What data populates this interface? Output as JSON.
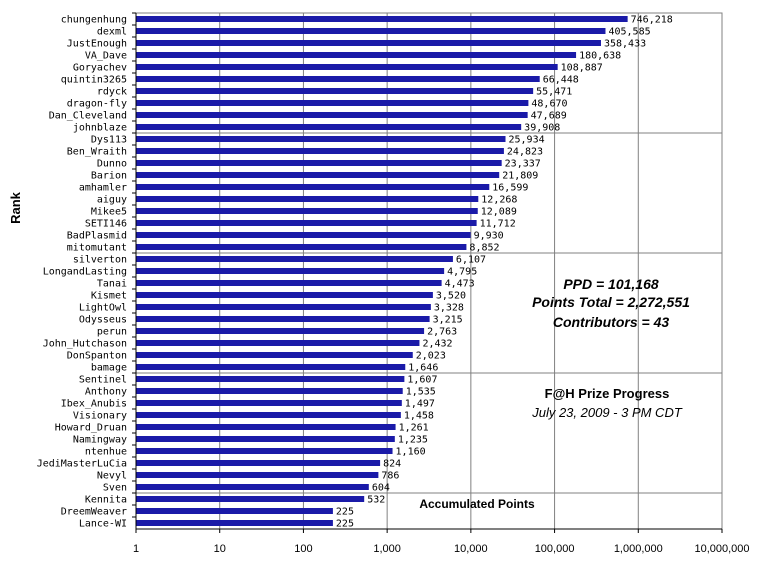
{
  "chart_data": {
    "type": "bar",
    "orientation": "horizontal",
    "scale": "log",
    "ylabel": "Rank",
    "xlim": [
      1,
      10000000
    ],
    "grid": true,
    "bar_color": "#1a1aa8",
    "categories": [
      "chungenhung",
      "dexml",
      "JustEnough",
      "VA_Dave",
      "Goryachev",
      "quintin3265",
      "rdyck",
      "dragon-fly",
      "Dan_Cleveland",
      "johnblaze",
      "Dys113",
      "Ben_Wraith",
      "Dunno",
      "Barion",
      "amhamler",
      "aiguy",
      "Mikee5",
      "SETI146",
      "BadPlasmid",
      "mitomutant",
      "silverton",
      "LongandLasting",
      "Tanai",
      "Kismet",
      "LightOwl",
      "Odysseus",
      "perun",
      "John_Hutchason",
      "DonSpanton",
      "bamage",
      "Sentinel",
      "Anthony",
      "Ibex_Anubis",
      "Visionary",
      "Howard_Druan",
      "Namingway",
      "ntenhue",
      "JediMasterLuCia",
      "Nevyl",
      "Sven",
      "Kennita",
      "DreemWeaver",
      "Lance-WI"
    ],
    "values": [
      746218,
      405585,
      358433,
      180638,
      108887,
      66448,
      55471,
      48670,
      47689,
      39908,
      25934,
      24823,
      23337,
      21809,
      16599,
      12268,
      12089,
      11712,
      9930,
      8852,
      6107,
      4795,
      4473,
      3520,
      3328,
      3215,
      2763,
      2432,
      2023,
      1646,
      1607,
      1535,
      1497,
      1458,
      1261,
      1235,
      1160,
      824,
      786,
      604,
      532,
      225,
      225
    ],
    "value_labels": [
      "746,218",
      "405,585",
      "358,433",
      "180,638",
      "108,887",
      "66,448",
      "55,471",
      "48,670",
      "47,689",
      "39,908",
      "25,934",
      "24,823",
      "23,337",
      "21,809",
      "16,599",
      "12,268",
      "12,089",
      "11,712",
      "9,930",
      "8,852",
      "6,107",
      "4,795",
      "4,473",
      "3,520",
      "3,328",
      "3,215",
      "2,763",
      "2,432",
      "2,023",
      "1,646",
      "1,607",
      "1,535",
      "1,497",
      "1,458",
      "1,261",
      "1,235",
      "1,160",
      "824",
      "786",
      "604",
      "532",
      "225",
      "225"
    ],
    "x_tick_values": [
      1,
      10,
      100,
      1000,
      10000,
      100000,
      1000000,
      10000000
    ],
    "x_tick_labels": [
      "1",
      "10",
      "100",
      "1,000",
      "10,000",
      "100,000",
      "1,000,000",
      "10,000,000"
    ],
    "annotations": {
      "ppd": "PPD = 101,168",
      "points_total": "Points Total = 2,272,551",
      "contributors": "Contributors = 43",
      "title": "F@H Prize Progress",
      "date": "July 23, 2009 - 3 PM CDT",
      "series_label": "Accumulated Points"
    }
  }
}
